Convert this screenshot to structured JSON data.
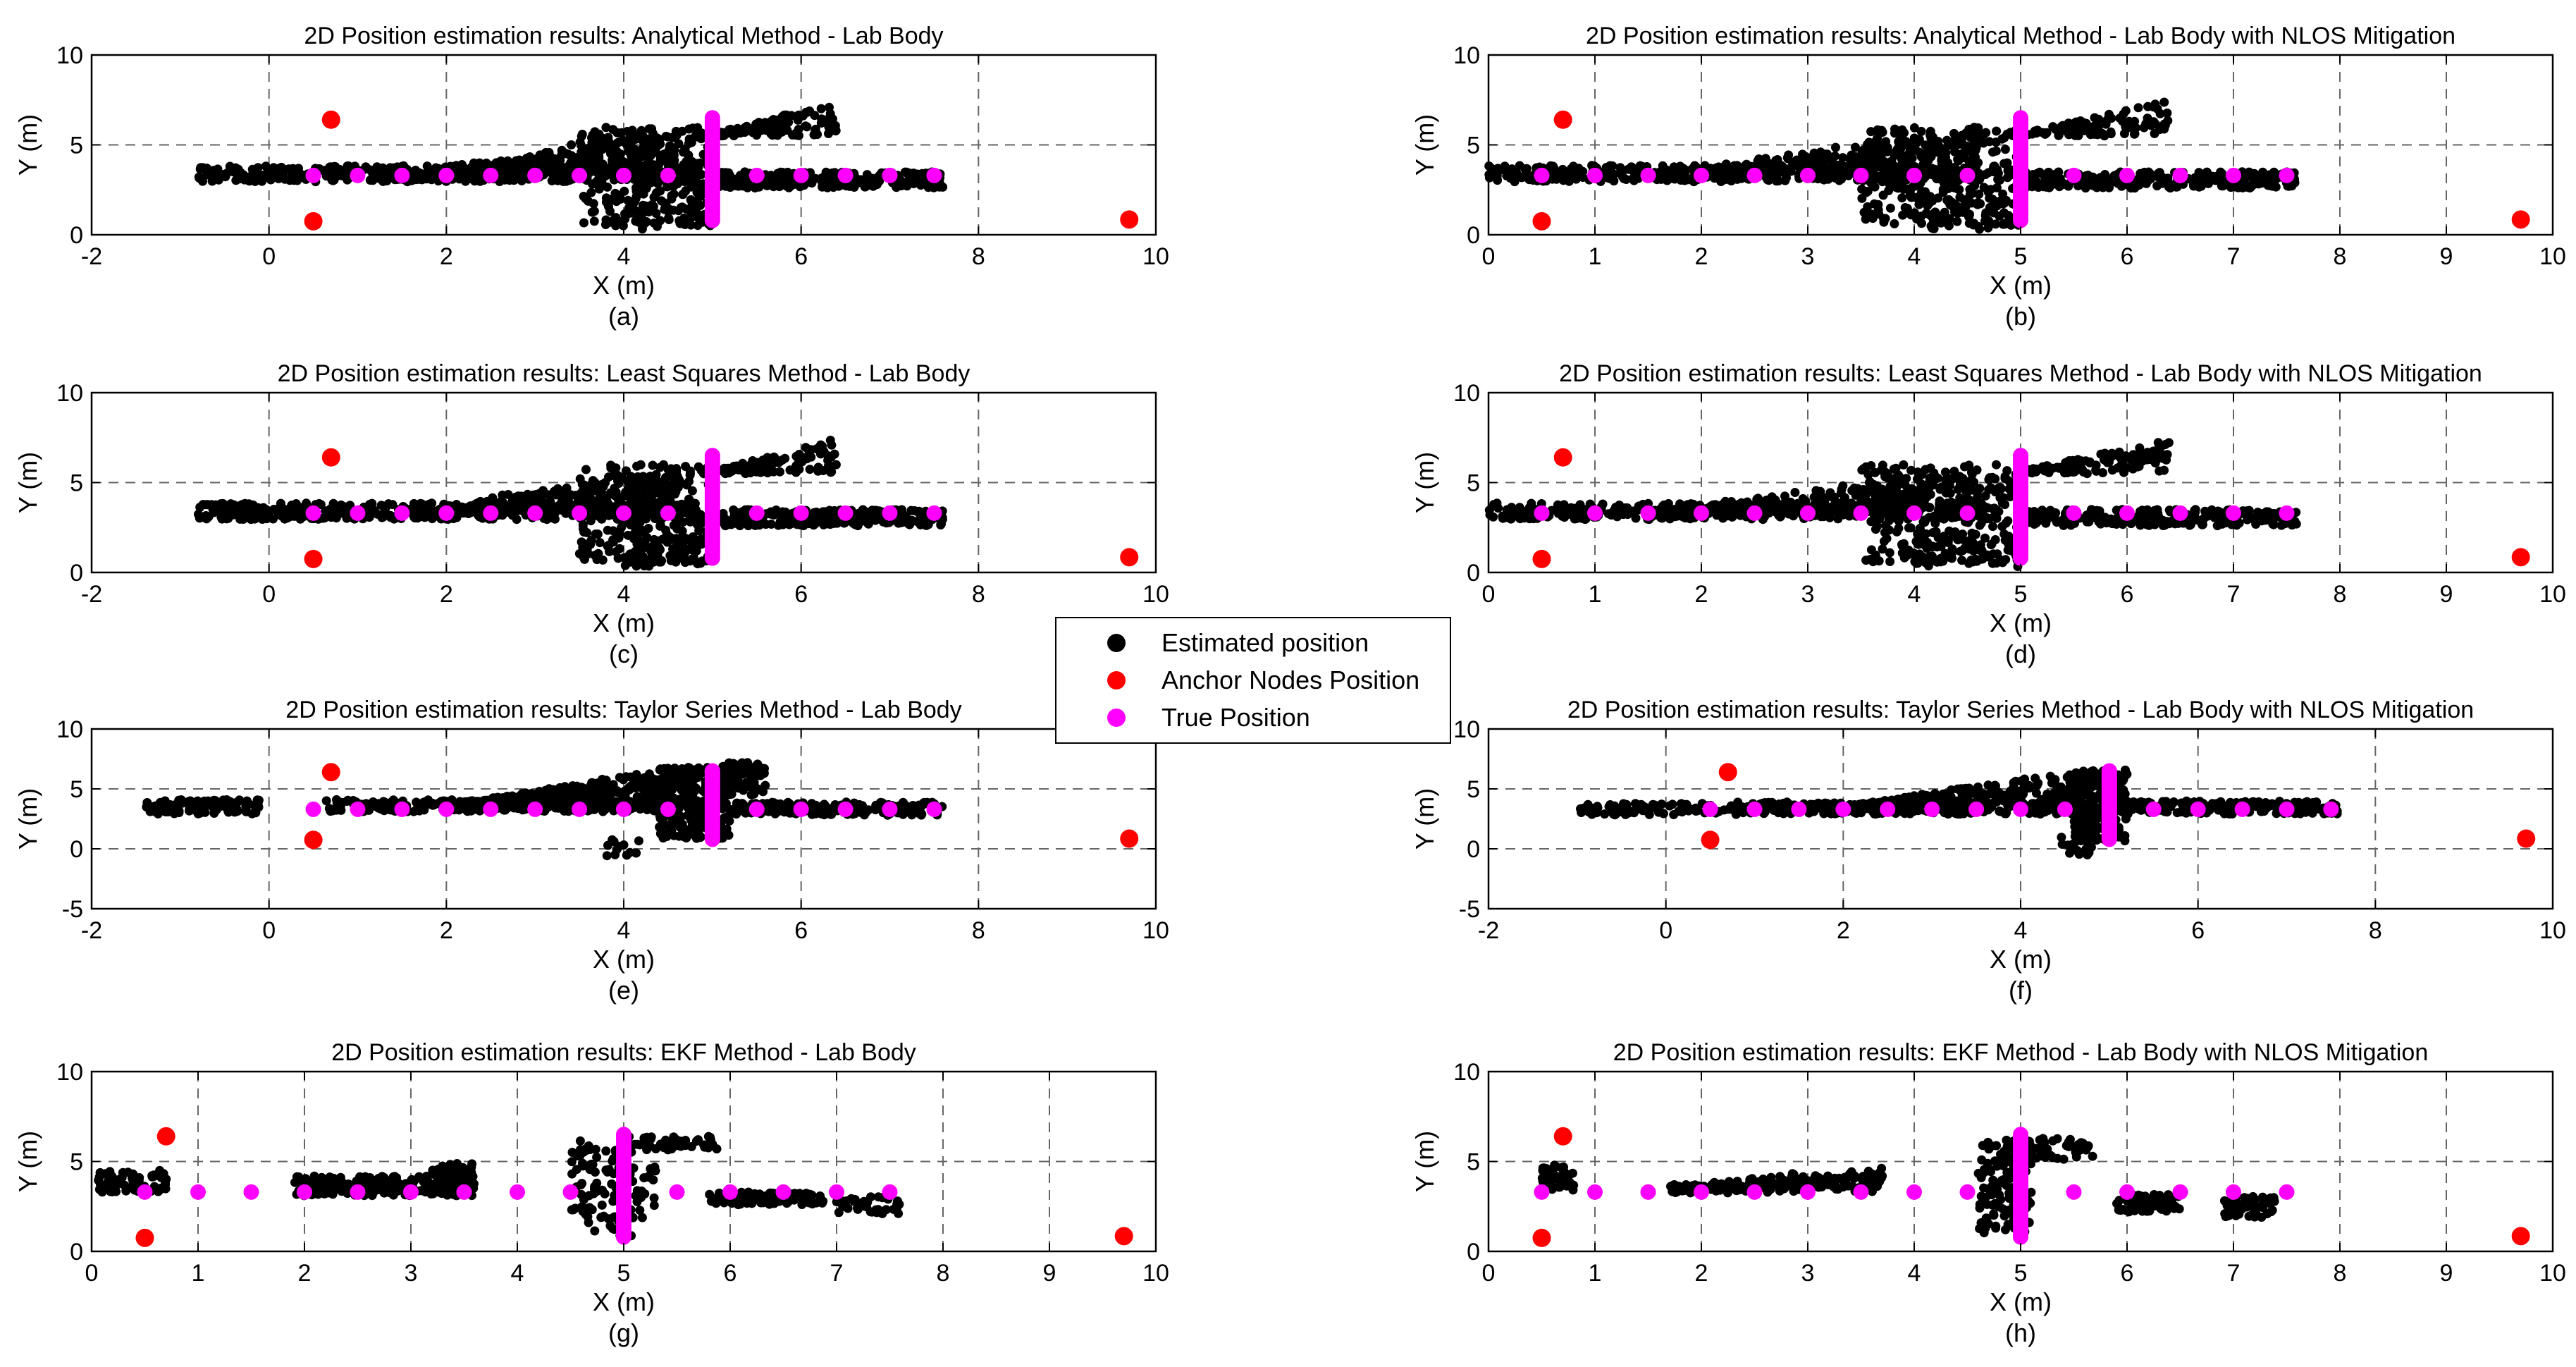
{
  "chart_data": [
    {
      "id": "a",
      "type": "scatter",
      "title": "2D Position estimation results: Analytical Method - Lab Body",
      "xlabel": "X (m)",
      "ylabel": "Y (m)",
      "caption": "(a)",
      "xlim": [
        -2,
        10
      ],
      "ylim": [
        0,
        10
      ],
      "xticks": [
        "-2",
        "0",
        "2",
        "4",
        "6",
        "8",
        "10"
      ],
      "yticks": [
        "0",
        "5",
        "10"
      ],
      "grid": true,
      "profile": "std",
      "anchors": [
        [
          0.5,
          0.75
        ],
        [
          0.7,
          6.4
        ],
        [
          9.7,
          0.85
        ]
      ],
      "true_points": [
        [
          0.5,
          3.3
        ],
        [
          1.0,
          3.3
        ],
        [
          1.5,
          3.3
        ],
        [
          2.0,
          3.3
        ],
        [
          2.5,
          3.3
        ],
        [
          3.0,
          3.3
        ],
        [
          3.5,
          3.3
        ],
        [
          4.0,
          3.3
        ],
        [
          4.5,
          3.3
        ],
        [
          5.5,
          3.3
        ],
        [
          6.0,
          3.3
        ],
        [
          6.5,
          3.3
        ],
        [
          7.0,
          3.3
        ],
        [
          7.5,
          3.3
        ]
      ],
      "true_vertical": {
        "x": 5.0,
        "y_from": 0.8,
        "y_to": 6.5
      }
    },
    {
      "id": "b",
      "type": "scatter",
      "title": "2D Position estimation results: Analytical Method - Lab Body with NLOS Mitigation",
      "xlabel": "X (m)",
      "ylabel": "Y (m)",
      "caption": "(b)",
      "xlim": [
        0,
        10
      ],
      "ylim": [
        0,
        10
      ],
      "xticks": [
        "0",
        "1",
        "2",
        "3",
        "4",
        "5",
        "6",
        "7",
        "8",
        "9",
        "10"
      ],
      "yticks": [
        "0",
        "5",
        "10"
      ],
      "grid": true,
      "profile": "std",
      "anchors": [
        [
          0.5,
          0.75
        ],
        [
          0.7,
          6.4
        ],
        [
          9.7,
          0.85
        ]
      ],
      "true_points": [
        [
          0.5,
          3.3
        ],
        [
          1.0,
          3.3
        ],
        [
          1.5,
          3.3
        ],
        [
          2.0,
          3.3
        ],
        [
          2.5,
          3.3
        ],
        [
          3.0,
          3.3
        ],
        [
          3.5,
          3.3
        ],
        [
          4.0,
          3.3
        ],
        [
          4.5,
          3.3
        ],
        [
          5.5,
          3.3
        ],
        [
          6.0,
          3.3
        ],
        [
          6.5,
          3.3
        ],
        [
          7.0,
          3.3
        ],
        [
          7.5,
          3.3
        ]
      ],
      "true_vertical": {
        "x": 5.0,
        "y_from": 0.8,
        "y_to": 6.5
      }
    },
    {
      "id": "c",
      "type": "scatter",
      "title": "2D Position estimation results: Least Squares Method - Lab Body",
      "xlabel": "X (m)",
      "ylabel": "Y (m)",
      "caption": "(c)",
      "xlim": [
        -2,
        10
      ],
      "ylim": [
        0,
        10
      ],
      "xticks": [
        "-2",
        "0",
        "2",
        "4",
        "6",
        "8",
        "10"
      ],
      "yticks": [
        "0",
        "5",
        "10"
      ],
      "grid": true,
      "profile": "std",
      "anchors": [
        [
          0.5,
          0.75
        ],
        [
          0.7,
          6.4
        ],
        [
          9.7,
          0.85
        ]
      ],
      "true_points": [
        [
          0.5,
          3.3
        ],
        [
          1.0,
          3.3
        ],
        [
          1.5,
          3.3
        ],
        [
          2.0,
          3.3
        ],
        [
          2.5,
          3.3
        ],
        [
          3.0,
          3.3
        ],
        [
          3.5,
          3.3
        ],
        [
          4.0,
          3.3
        ],
        [
          4.5,
          3.3
        ],
        [
          5.5,
          3.3
        ],
        [
          6.0,
          3.3
        ],
        [
          6.5,
          3.3
        ],
        [
          7.0,
          3.3
        ],
        [
          7.5,
          3.3
        ]
      ],
      "true_vertical": {
        "x": 5.0,
        "y_from": 0.8,
        "y_to": 6.5
      }
    },
    {
      "id": "d",
      "type": "scatter",
      "title": "2D Position estimation results: Least Squares Method - Lab Body with NLOS Mitigation",
      "xlabel": "X (m)",
      "ylabel": "Y (m)",
      "caption": "(d)",
      "xlim": [
        0,
        10
      ],
      "ylim": [
        0,
        10
      ],
      "xticks": [
        "0",
        "1",
        "2",
        "3",
        "4",
        "5",
        "6",
        "7",
        "8",
        "9",
        "10"
      ],
      "yticks": [
        "0",
        "5",
        "10"
      ],
      "grid": true,
      "profile": "std",
      "anchors": [
        [
          0.5,
          0.75
        ],
        [
          0.7,
          6.4
        ],
        [
          9.7,
          0.85
        ]
      ],
      "true_points": [
        [
          0.5,
          3.3
        ],
        [
          1.0,
          3.3
        ],
        [
          1.5,
          3.3
        ],
        [
          2.0,
          3.3
        ],
        [
          2.5,
          3.3
        ],
        [
          3.0,
          3.3
        ],
        [
          3.5,
          3.3
        ],
        [
          4.0,
          3.3
        ],
        [
          4.5,
          3.3
        ],
        [
          5.5,
          3.3
        ],
        [
          6.0,
          3.3
        ],
        [
          6.5,
          3.3
        ],
        [
          7.0,
          3.3
        ],
        [
          7.5,
          3.3
        ]
      ],
      "true_vertical": {
        "x": 5.0,
        "y_from": 0.8,
        "y_to": 6.5
      }
    },
    {
      "id": "e",
      "type": "scatter",
      "title": "2D Position estimation results: Taylor Series Method - Lab Body",
      "xlabel": "X (m)",
      "ylabel": "Y (m)",
      "caption": "(e)",
      "xlim": [
        -2,
        10
      ],
      "ylim": [
        -5,
        10
      ],
      "xticks": [
        "-2",
        "0",
        "2",
        "4",
        "6",
        "8",
        "10"
      ],
      "yticks": [
        "-5",
        "0",
        "5",
        "10"
      ],
      "grid": true,
      "profile": "taylor",
      "anchors": [
        [
          0.5,
          0.75
        ],
        [
          0.7,
          6.4
        ],
        [
          9.7,
          0.85
        ]
      ],
      "true_points": [
        [
          0.5,
          3.3
        ],
        [
          1.0,
          3.3
        ],
        [
          1.5,
          3.3
        ],
        [
          2.0,
          3.3
        ],
        [
          2.5,
          3.3
        ],
        [
          3.0,
          3.3
        ],
        [
          3.5,
          3.3
        ],
        [
          4.0,
          3.3
        ],
        [
          4.5,
          3.3
        ],
        [
          5.5,
          3.3
        ],
        [
          6.0,
          3.3
        ],
        [
          6.5,
          3.3
        ],
        [
          7.0,
          3.3
        ],
        [
          7.5,
          3.3
        ]
      ],
      "true_vertical": {
        "x": 5.0,
        "y_from": 0.8,
        "y_to": 6.5
      }
    },
    {
      "id": "f",
      "type": "scatter",
      "title": "2D Position estimation results: Taylor Series Method - Lab Body with NLOS Mitigation",
      "xlabel": "X (m)",
      "ylabel": "Y (m)",
      "caption": "(f)",
      "xlim": [
        -2,
        10
      ],
      "ylim": [
        -5,
        10
      ],
      "xticks": [
        "-2",
        "0",
        "2",
        "4",
        "6",
        "8",
        "10"
      ],
      "yticks": [
        "-5",
        "0",
        "5",
        "10"
      ],
      "grid": true,
      "profile": "taylorN",
      "anchors": [
        [
          0.5,
          0.75
        ],
        [
          0.7,
          6.4
        ],
        [
          9.7,
          0.85
        ]
      ],
      "true_points": [
        [
          0.5,
          3.3
        ],
        [
          1.0,
          3.3
        ],
        [
          1.5,
          3.3
        ],
        [
          2.0,
          3.3
        ],
        [
          2.5,
          3.3
        ],
        [
          3.0,
          3.3
        ],
        [
          3.5,
          3.3
        ],
        [
          4.0,
          3.3
        ],
        [
          4.5,
          3.3
        ],
        [
          5.5,
          3.3
        ],
        [
          6.0,
          3.3
        ],
        [
          6.5,
          3.3
        ],
        [
          7.0,
          3.3
        ],
        [
          7.5,
          3.3
        ]
      ],
      "true_vertical": {
        "x": 5.0,
        "y_from": 0.8,
        "y_to": 6.5
      }
    },
    {
      "id": "g",
      "type": "scatter",
      "title": "2D Position estimation results: EKF Method - Lab Body",
      "xlabel": "X (m)",
      "ylabel": "Y (m)",
      "caption": "(g)",
      "xlim": [
        0,
        10
      ],
      "ylim": [
        0,
        10
      ],
      "xticks": [
        "0",
        "1",
        "2",
        "3",
        "4",
        "5",
        "6",
        "7",
        "8",
        "9",
        "10"
      ],
      "yticks": [
        "0",
        "5",
        "10"
      ],
      "grid": true,
      "profile": "ekf",
      "anchors": [
        [
          0.5,
          0.75
        ],
        [
          0.7,
          6.4
        ],
        [
          9.7,
          0.85
        ]
      ],
      "true_points": [
        [
          0.5,
          3.3
        ],
        [
          1.0,
          3.3
        ],
        [
          1.5,
          3.3
        ],
        [
          2.0,
          3.3
        ],
        [
          2.5,
          3.3
        ],
        [
          3.0,
          3.3
        ],
        [
          3.5,
          3.3
        ],
        [
          4.0,
          3.3
        ],
        [
          4.5,
          3.3
        ],
        [
          5.5,
          3.3
        ],
        [
          6.0,
          3.3
        ],
        [
          6.5,
          3.3
        ],
        [
          7.0,
          3.3
        ],
        [
          7.5,
          3.3
        ]
      ],
      "true_vertical": {
        "x": 5.0,
        "y_from": 0.8,
        "y_to": 6.5
      }
    },
    {
      "id": "h",
      "type": "scatter",
      "title": "2D Position estimation results: EKF Method - Lab Body with NLOS Mitigation",
      "xlabel": "X (m)",
      "ylabel": "Y (m)",
      "caption": "(h)",
      "xlim": [
        0,
        10
      ],
      "ylim": [
        0,
        10
      ],
      "xticks": [
        "0",
        "1",
        "2",
        "3",
        "4",
        "5",
        "6",
        "7",
        "8",
        "9",
        "10"
      ],
      "yticks": [
        "0",
        "5",
        "10"
      ],
      "grid": true,
      "profile": "ekfN",
      "anchors": [
        [
          0.5,
          0.75
        ],
        [
          0.7,
          6.4
        ],
        [
          9.7,
          0.85
        ]
      ],
      "true_points": [
        [
          0.5,
          3.3
        ],
        [
          1.0,
          3.3
        ],
        [
          1.5,
          3.3
        ],
        [
          2.0,
          3.3
        ],
        [
          2.5,
          3.3
        ],
        [
          3.0,
          3.3
        ],
        [
          3.5,
          3.3
        ],
        [
          4.0,
          3.3
        ],
        [
          4.5,
          3.3
        ],
        [
          5.5,
          3.3
        ],
        [
          6.0,
          3.3
        ],
        [
          6.5,
          3.3
        ],
        [
          7.0,
          3.3
        ],
        [
          7.5,
          3.3
        ]
      ],
      "true_vertical": {
        "x": 5.0,
        "y_from": 0.8,
        "y_to": 6.5
      }
    }
  ],
  "legend": {
    "placement": "center",
    "items": [
      {
        "label": "Estimated position",
        "color": "#000000"
      },
      {
        "label": "Anchor Nodes Position",
        "color": "#ff0000"
      },
      {
        "label": "True Position",
        "color": "#ff00ff"
      }
    ]
  },
  "colors": {
    "estimated": "#000000",
    "anchor": "#ff0000",
    "true": "#ff00ff",
    "grid": "#666666"
  }
}
